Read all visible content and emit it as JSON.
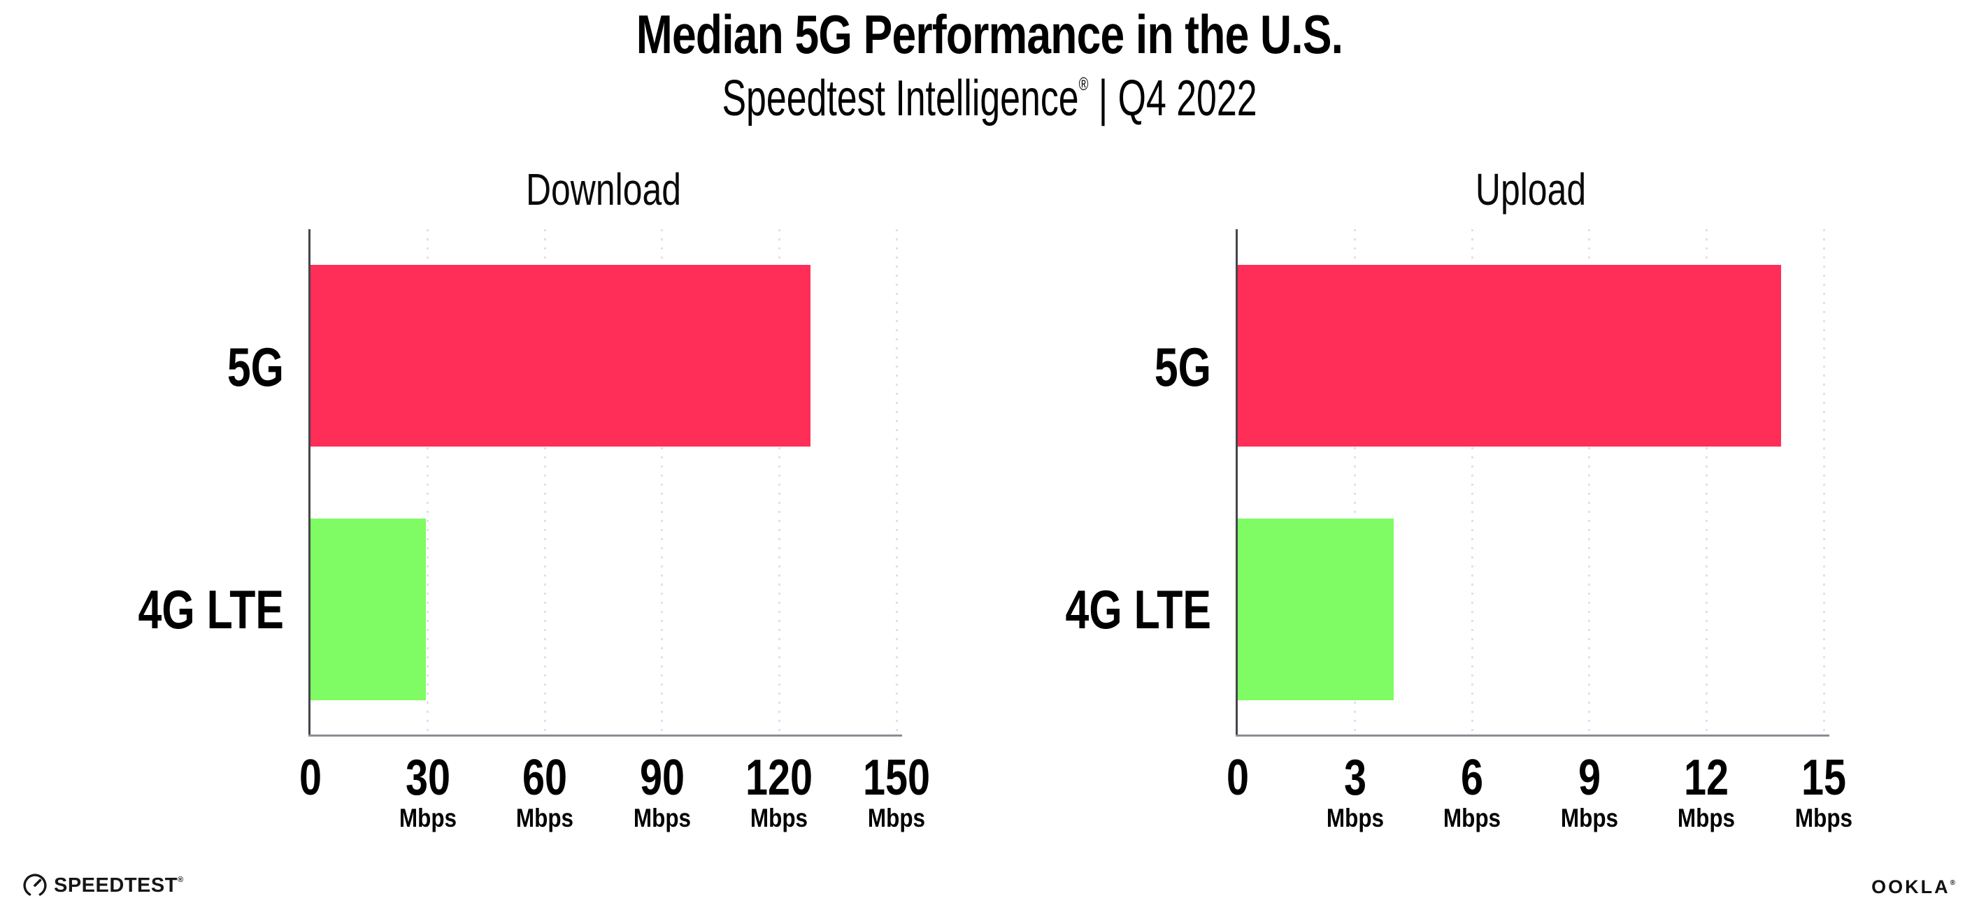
{
  "header": {
    "title": "Median 5G Performance in the U.S.",
    "subtitle_brand": "Speedtest Intelligence",
    "subtitle_reg": "®",
    "subtitle_rest": " | Q4 2022"
  },
  "colors": {
    "bar_5g": "#ff2e59",
    "bar_4g_lte": "#7ffc63",
    "gridline": "#e0e0ea",
    "x_axis": "#8c8c94",
    "y_axis": "#45454c"
  },
  "chart_data": [
    {
      "type": "bar",
      "orientation": "horizontal",
      "title": "Download",
      "categories": [
        "5G",
        "4G LTE"
      ],
      "values": [
        128,
        29.5
      ],
      "unit": "Mbps",
      "xlabel": "",
      "ylabel": "",
      "xlim": [
        0,
        150
      ],
      "xticks": [
        0,
        30,
        60,
        90,
        120,
        150
      ],
      "tick_unit_label": "Mbps",
      "grid": "vertical-dotted",
      "legend": "none"
    },
    {
      "type": "bar",
      "orientation": "horizontal",
      "title": "Upload",
      "categories": [
        "5G",
        "4G LTE"
      ],
      "values": [
        13.9,
        4
      ],
      "unit": "Mbps",
      "xlabel": "",
      "ylabel": "",
      "xlim": [
        0,
        15
      ],
      "xticks": [
        0,
        3,
        6,
        9,
        12,
        15
      ],
      "tick_unit_label": "Mbps",
      "grid": "vertical-dotted",
      "legend": "none"
    }
  ],
  "footer": {
    "speedtest_label": "SPEEDTEST",
    "speedtest_reg": "®",
    "ookla_label": "OOKLA",
    "ookla_reg": "®"
  }
}
